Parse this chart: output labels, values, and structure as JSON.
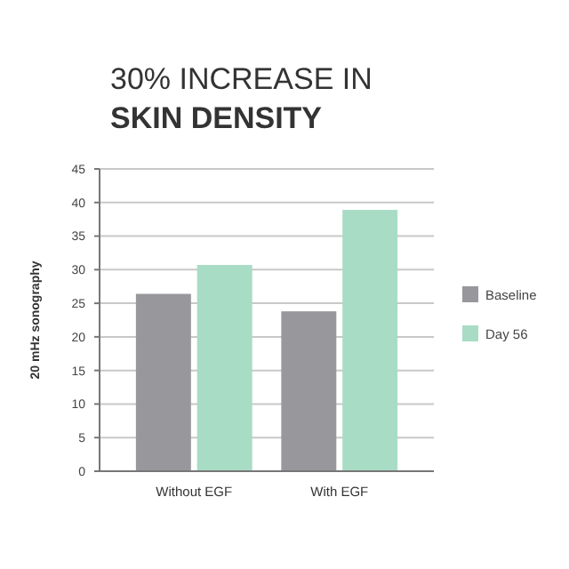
{
  "chart_data": {
    "type": "bar",
    "title": "30% INCREASE IN",
    "subtitle": "SKIN DENSITY",
    "ylabel": "20 mHz sonography",
    "categories": [
      "Without EGF",
      "With EGF"
    ],
    "series": [
      {
        "name": "Baseline",
        "color": "#98989c",
        "values": [
          26.4,
          23.8
        ]
      },
      {
        "name": "Day 56",
        "color": "#a8dcc4",
        "values": [
          30.7,
          38.9
        ]
      }
    ],
    "ylim": [
      0,
      45
    ],
    "yticks": [
      0,
      5,
      10,
      15,
      20,
      25,
      30,
      35,
      40,
      45
    ],
    "grid": "y",
    "legend": "right"
  }
}
